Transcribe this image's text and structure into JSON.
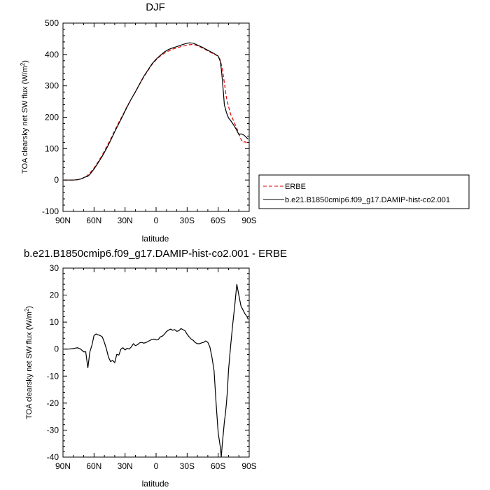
{
  "chart_data": [
    {
      "type": "line",
      "title": "DJF",
      "xlabel": "latitude",
      "ylabel": "TOA clearsky net SW flux (W/m",
      "ylabel_sup": "2",
      "ylabel_close": ")",
      "xlim": [
        90,
        -90
      ],
      "ylim": [
        -100,
        500
      ],
      "xticks": [
        90,
        60,
        30,
        0,
        -30,
        -60,
        -90
      ],
      "xtick_labels": [
        "90N",
        "60N",
        "30N",
        "0",
        "30S",
        "60S",
        "90S"
      ],
      "yticks": [
        -100,
        0,
        100,
        200,
        300,
        400,
        500
      ],
      "ytick_labels": [
        "-100",
        "0",
        "100",
        "200",
        "300",
        "400",
        "500"
      ],
      "legend_position": "outside-right",
      "series": [
        {
          "name": "ERBE",
          "color": "#dd0000",
          "dash": "dashed",
          "x": [
            89,
            84,
            80,
            76,
            72,
            68,
            64,
            60,
            56,
            52,
            48,
            44,
            40,
            36,
            32,
            28,
            24,
            20,
            16,
            12,
            8,
            4,
            0,
            -4,
            -8,
            -12,
            -16,
            -20,
            -24,
            -28,
            -32,
            -36,
            -40,
            -44,
            -48,
            -52,
            -56,
            -60,
            -62,
            -64,
            -66,
            -68,
            -70,
            -72,
            -74,
            -76,
            -78,
            -80,
            -82,
            -84,
            -86,
            -89
          ],
          "y": [
            0,
            0,
            0,
            1,
            4,
            10,
            22,
            38,
            58,
            80,
            105,
            130,
            158,
            184,
            208,
            235,
            258,
            280,
            305,
            328,
            348,
            368,
            383,
            395,
            404,
            411,
            417,
            421,
            425,
            428,
            431,
            432,
            428,
            422,
            415,
            408,
            401,
            395,
            383,
            355,
            310,
            262,
            235,
            210,
            195,
            180,
            165,
            148,
            130,
            120,
            122,
            115
          ]
        },
        {
          "name": "b.e21.B1850cmip6.f09_g17.DAMIP-hist-co2.001",
          "color": "#000000",
          "dash": "solid",
          "x": [
            89,
            84,
            80,
            76,
            72,
            70,
            68,
            66,
            64,
            60,
            56,
            52,
            48,
            44,
            40,
            36,
            32,
            28,
            24,
            20,
            16,
            12,
            8,
            4,
            0,
            -4,
            -8,
            -12,
            -16,
            -20,
            -24,
            -28,
            -32,
            -36,
            -40,
            -44,
            -48,
            -52,
            -56,
            -60,
            -62,
            -63,
            -64,
            -65,
            -66,
            -68,
            -70,
            -72,
            -74,
            -76,
            -78,
            -80,
            -82,
            -84,
            -86,
            -89
          ],
          "y": [
            0,
            0,
            0,
            1,
            4,
            8,
            10,
            12,
            18,
            35,
            55,
            76,
            100,
            126,
            154,
            180,
            206,
            233,
            258,
            281,
            306,
            330,
            350,
            370,
            385,
            397,
            408,
            416,
            421,
            425,
            430,
            434,
            437,
            436,
            430,
            424,
            417,
            410,
            403,
            395,
            378,
            355,
            320,
            280,
            240,
            215,
            198,
            190,
            180,
            170,
            158,
            145,
            147,
            145,
            140,
            130
          ]
        }
      ]
    },
    {
      "type": "line",
      "title": "b.e21.B1850cmip6.f09_g17.DAMIP-hist-co2.001 - ERBE",
      "xlabel": "latitude",
      "ylabel": "TOA clearsky net SW flux (W/m",
      "ylabel_sup": "2",
      "ylabel_close": ")",
      "xlim": [
        90,
        -90
      ],
      "ylim": [
        -40,
        30
      ],
      "xticks": [
        90,
        60,
        30,
        0,
        -30,
        -60,
        -90
      ],
      "xtick_labels": [
        "90N",
        "60N",
        "30N",
        "0",
        "30S",
        "60S",
        "90S"
      ],
      "yticks": [
        -40,
        -30,
        -20,
        -10,
        0,
        10,
        20,
        30
      ],
      "ytick_labels": [
        "-40",
        "-30",
        "-20",
        "-10",
        "0",
        "10",
        "20",
        "30"
      ],
      "series": [
        {
          "color": "#000000",
          "x": [
            89,
            86,
            84,
            80,
            76,
            73,
            70,
            68,
            66,
            64,
            62,
            60,
            58,
            56,
            54,
            52,
            50,
            48,
            46,
            44,
            42,
            40,
            38,
            36,
            34,
            32,
            30,
            28,
            26,
            24,
            22,
            20,
            18,
            16,
            14,
            12,
            10,
            8,
            6,
            4,
            2,
            0,
            -2,
            -4,
            -6,
            -8,
            -10,
            -12,
            -14,
            -16,
            -18,
            -20,
            -22,
            -24,
            -26,
            -28,
            -30,
            -32,
            -34,
            -36,
            -38,
            -40,
            -42,
            -44,
            -46,
            -48,
            -50,
            -52,
            -54,
            -56,
            -58,
            -60,
            -62,
            -63,
            -64,
            -65,
            -66,
            -67,
            -68,
            -69,
            -70,
            -72,
            -74,
            -76,
            -78,
            -80,
            -82,
            -84,
            -86,
            -88,
            -89
          ],
          "y": [
            0,
            0,
            0,
            0.2,
            0.5,
            0,
            -1,
            -1,
            -7,
            -1,
            1.5,
            5,
            5.6,
            5.3,
            5,
            4.5,
            2.5,
            0,
            -3,
            -4.6,
            -4.2,
            -5,
            -2,
            -2.2,
            0,
            0.5,
            -0.3,
            0.3,
            0,
            0.8,
            2,
            1.3,
            1.6,
            2.3,
            2.5,
            2.2,
            2.4,
            2.8,
            3.2,
            3.6,
            3.7,
            3.4,
            3.5,
            4.5,
            4.8,
            5.5,
            6.5,
            7,
            7.4,
            7,
            7.2,
            6.6,
            6.8,
            7.6,
            7.2,
            6.8,
            5.5,
            4.5,
            3.7,
            3.2,
            2.4,
            2,
            2,
            2.3,
            2.5,
            3,
            2.5,
            0.8,
            -3,
            -8,
            -20,
            -31,
            -36,
            -40,
            -35,
            -31,
            -27,
            -24,
            -20,
            -15,
            -8,
            1,
            9,
            16,
            24,
            20,
            16,
            14.5,
            13,
            12,
            11
          ]
        }
      ]
    }
  ]
}
